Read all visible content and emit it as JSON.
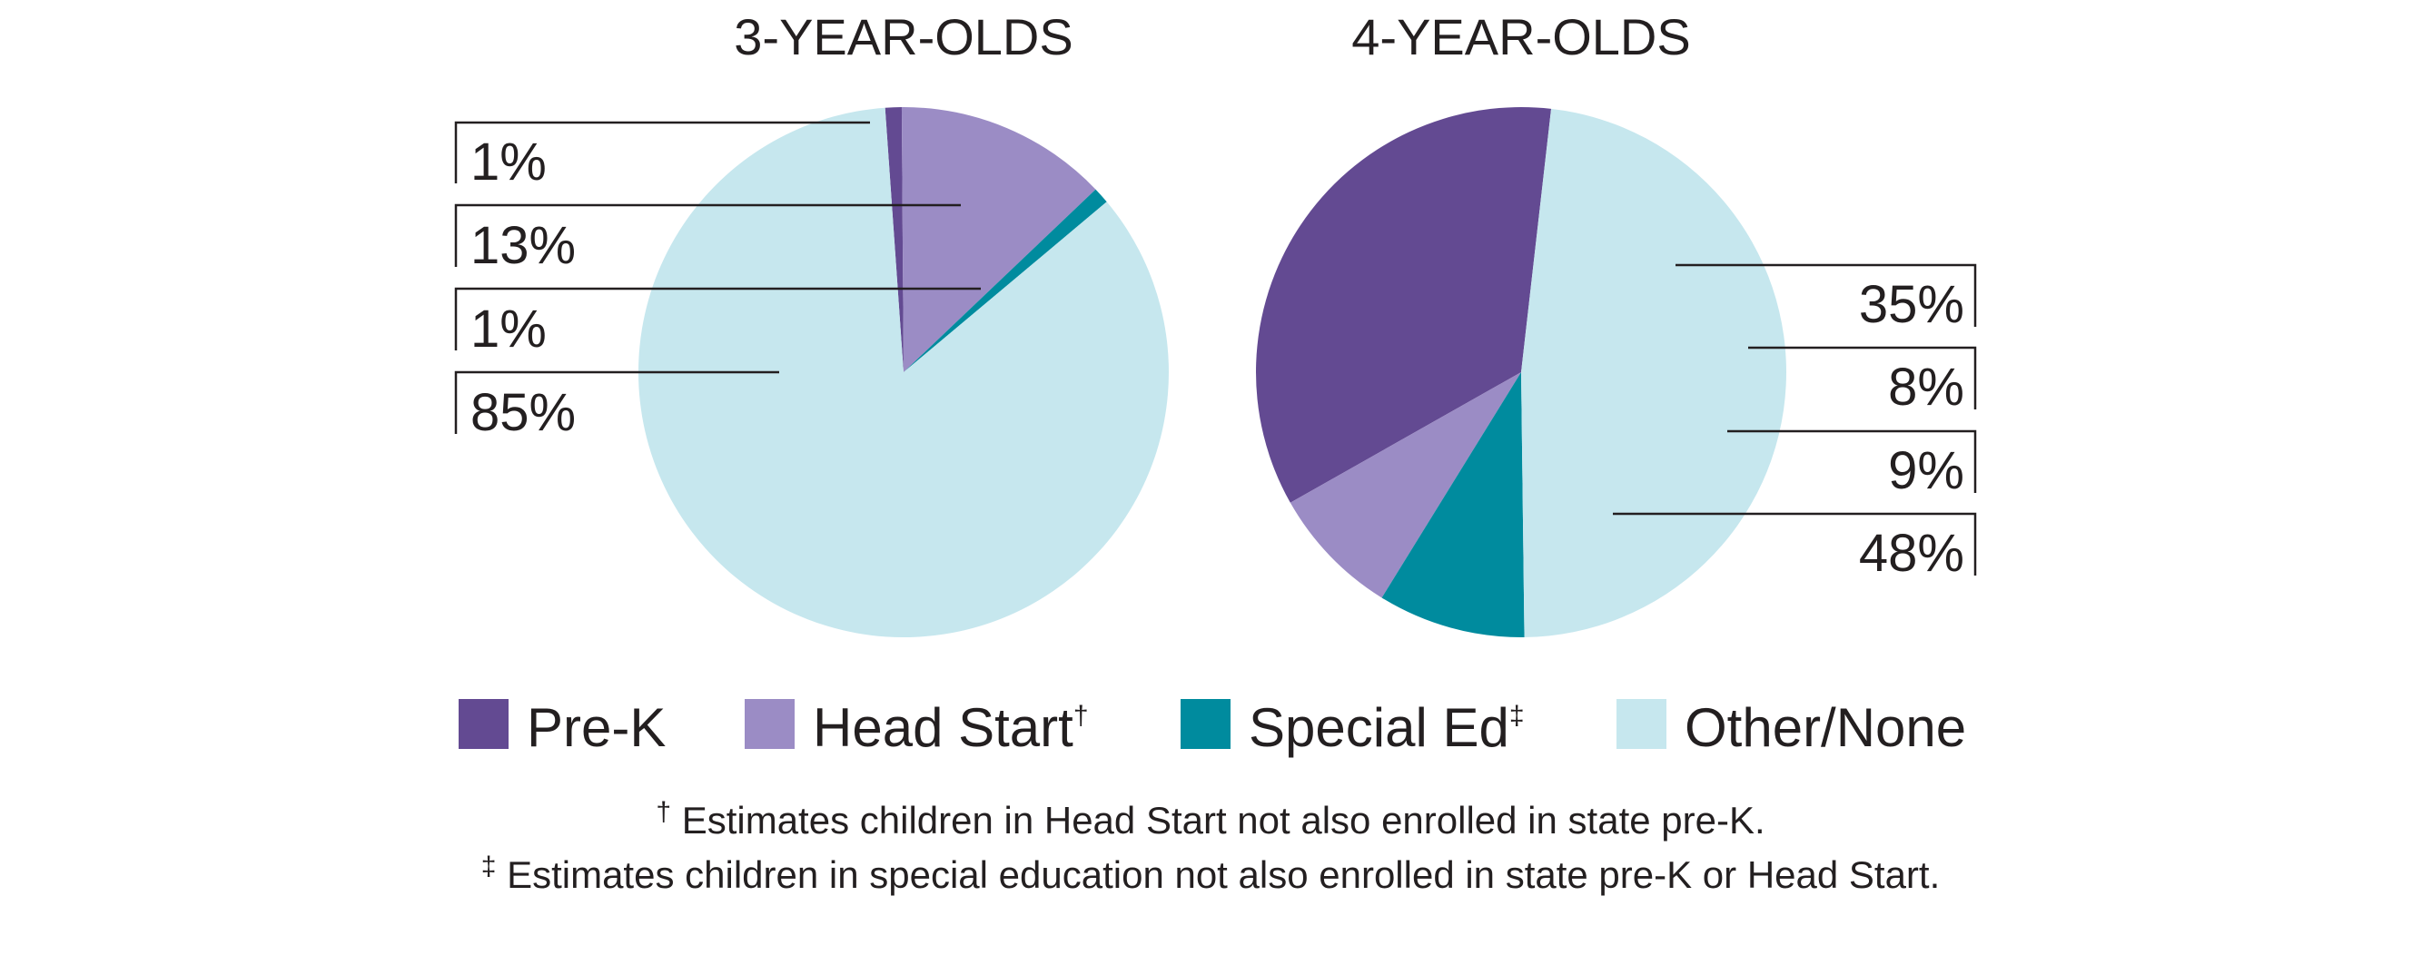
{
  "chart_data": [
    {
      "type": "pie",
      "title": "3-YEAR-OLDS",
      "categories": [
        "Pre-K",
        "Head Start",
        "Special Ed",
        "Other/None"
      ],
      "values": [
        1,
        13,
        1,
        85
      ],
      "labels": [
        "1%",
        "13%",
        "1%",
        "85%"
      ]
    },
    {
      "type": "pie",
      "title": "4-YEAR-OLDS",
      "categories": [
        "Pre-K",
        "Head Start",
        "Special Ed",
        "Other/None"
      ],
      "values": [
        35,
        8,
        9,
        48
      ],
      "labels": [
        "35%",
        "8%",
        "9%",
        "48%"
      ]
    }
  ],
  "legend": {
    "items": [
      {
        "label": "Pre-K",
        "mark": "",
        "color": "#634a92"
      },
      {
        "label": "Head Start",
        "mark": "†",
        "color": "#9b8cc5"
      },
      {
        "label": "Special Ed",
        "mark": "‡",
        "color": "#008b9e"
      },
      {
        "label": "Other/None",
        "mark": "",
        "color": "#c6e7ee"
      }
    ]
  },
  "footnotes": [
    {
      "mark": "†",
      "text": " Estimates children in Head Start not also enrolled in state pre-K."
    },
    {
      "mark": "‡",
      "text": " Estimates children in special education not also enrolled in state pre-K or Head Start."
    }
  ]
}
